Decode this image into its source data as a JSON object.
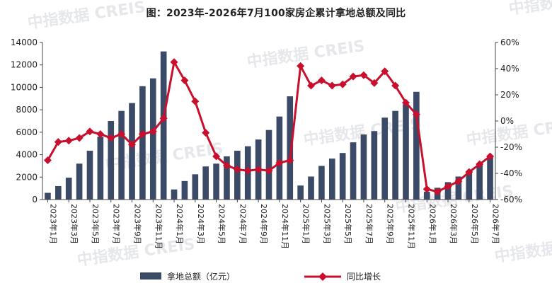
{
  "chart_data": {
    "type": "bar+line",
    "title": "图：2023年-2026年7月100家房企累计拿地总额及同比",
    "categories": [
      "2023年1月",
      "2023年2月",
      "2023年3月",
      "2023年4月",
      "2023年5月",
      "2023年6月",
      "2023年7月",
      "2023年8月",
      "2023年9月",
      "2023年10月",
      "2023年11月",
      "2023年12月",
      "2024年1月",
      "2024年2月",
      "2024年3月",
      "2024年4月",
      "2024年5月",
      "2024年6月",
      "2024年7月",
      "2024年8月",
      "2024年9月",
      "2024年10月",
      "2024年11月",
      "2024年12月",
      "2025年1月",
      "2025年2月",
      "2025年3月",
      "2025年4月",
      "2025年5月",
      "2025年6月",
      "2025年7月",
      "2025年8月",
      "2025年9月",
      "2025年10月",
      "2025年11月",
      "2025年12月",
      "2026年1月",
      "2026年2月",
      "2026年3月",
      "2026年4月",
      "2026年5月",
      "2026年6月",
      "2026年7月"
    ],
    "x_tick_labels": [
      "2023年1月",
      "2023年3月",
      "2023年5月",
      "2023年7月",
      "2023年9月",
      "2023年11月",
      "2024年1月",
      "2024年3月",
      "2024年5月",
      "2024年7月",
      "2024年9月",
      "2024年11月",
      "2025年1月",
      "2025年3月",
      "2025年5月",
      "2025年7月",
      "2025年9月",
      "2025年11月",
      "2026年1月",
      "2026年3月",
      "2026年5月",
      "2026年7月"
    ],
    "series": [
      {
        "name": "拿地总额（亿元）",
        "type": "bar",
        "axis": "left",
        "color": "#3b4a66",
        "values": [
          600,
          1200,
          1950,
          3200,
          4350,
          5600,
          7000,
          7900,
          8600,
          10100,
          10800,
          13200,
          900,
          1650,
          2250,
          2950,
          3200,
          3850,
          4350,
          4750,
          5350,
          6200,
          7400,
          9200,
          1250,
          2050,
          3000,
          3650,
          4150,
          5100,
          5800,
          6100,
          7300,
          7900,
          8500,
          9600,
          700,
          1050,
          1550,
          2050,
          2550,
          3100,
          3800
        ]
      },
      {
        "name": "同比增长",
        "type": "line",
        "axis": "right",
        "color": "#c8102e",
        "values": [
          -30,
          -16,
          -15,
          -13,
          -8,
          -10,
          -13,
          -10,
          -18,
          -10,
          -8,
          2,
          45,
          31,
          15,
          -9,
          -27,
          -34,
          -37,
          -38,
          -37,
          -38,
          -32,
          -30,
          42,
          27,
          31,
          27,
          28,
          34,
          35,
          29,
          38,
          27,
          14,
          5,
          -52,
          -54,
          -50,
          -46,
          -39,
          -33,
          -27
        ]
      }
    ],
    "y_left": {
      "min": 0,
      "max": 14000,
      "ticks": [
        "0",
        "2000",
        "4000",
        "6000",
        "8000",
        "10000",
        "12000",
        "14000"
      ]
    },
    "y_right": {
      "min": -60,
      "max": 60,
      "ticks": [
        "-60%",
        "-40%",
        "-20%",
        "0%",
        "20%",
        "40%",
        "60%"
      ]
    },
    "grid": false,
    "legend_position": "bottom",
    "watermark": "中指数据 CREIS"
  }
}
